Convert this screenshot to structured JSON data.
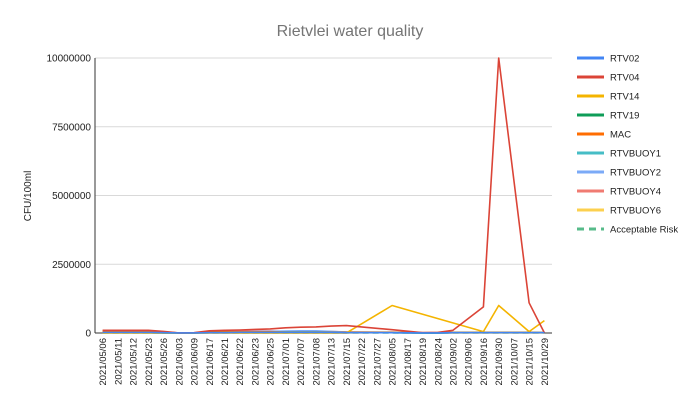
{
  "chart_data": {
    "type": "line",
    "title": "Rietvlei water quality",
    "xlabel": "",
    "ylabel": "CFU/100ml",
    "ylim": [
      0,
      10000000
    ],
    "yticks": [
      "0",
      "2500000",
      "5000000",
      "7500000",
      "10000000"
    ],
    "ytick_values": [
      0,
      2500000,
      5000000,
      7500000,
      10000000
    ],
    "grid": true,
    "legend_position": "right",
    "categories": [
      "2021/05/06",
      "2021/05/11",
      "2021/05/12",
      "2021/05/23",
      "2021/05/26",
      "2021/06/03",
      "2021/06/09",
      "2021/06/17",
      "2021/06/21",
      "2021/06/22",
      "2021/06/23",
      "2021/06/25",
      "2021/07/01",
      "2021/07/07",
      "2021/07/08",
      "2021/07/13",
      "2021/07/15",
      "2021/07/22",
      "2021/07/27",
      "2021/08/05",
      "2021/08/17",
      "2021/08/19",
      "2021/08/24",
      "2021/09/02",
      "2021/09/06",
      "2021/09/16",
      "2021/09/30",
      "2021/10/07",
      "2021/10/15",
      "2021/10/29"
    ],
    "series": [
      {
        "name": "RTV02",
        "color": "#4285f4",
        "dashed": false,
        "values": [
          20000,
          20000,
          20000,
          20000,
          10000,
          5000,
          5000,
          10000,
          10000,
          20000,
          20000,
          20000,
          20000,
          20000,
          20000,
          20000,
          10000,
          null,
          null,
          10000,
          null,
          5000,
          5000,
          10000,
          null,
          10000,
          10000,
          null,
          10000,
          10000
        ]
      },
      {
        "name": "RTV04",
        "color": "#db4437",
        "dashed": false,
        "values": [
          100000,
          100000,
          100000,
          100000,
          60000,
          5000,
          10000,
          80000,
          100000,
          110000,
          130000,
          150000,
          190000,
          210000,
          220000,
          250000,
          270000,
          null,
          null,
          120000,
          null,
          10000,
          20000,
          100000,
          null,
          950000,
          10000000,
          null,
          1100000,
          5000
        ]
      },
      {
        "name": "RTV14",
        "color": "#f4b400",
        "dashed": false,
        "values": [
          5000,
          5000,
          5000,
          5000,
          5000,
          5000,
          5000,
          5000,
          5000,
          5000,
          5000,
          5000,
          5000,
          5000,
          5000,
          5000,
          5000,
          null,
          null,
          1000000,
          null,
          null,
          null,
          null,
          null,
          50000,
          1000000,
          null,
          50000,
          450000
        ]
      },
      {
        "name": "RTV19",
        "color": "#0f9d58",
        "dashed": false,
        "values": [
          10000,
          10000,
          10000,
          10000,
          5000,
          5000,
          5000,
          10000,
          10000,
          10000,
          10000,
          10000,
          10000,
          10000,
          10000,
          10000,
          10000,
          null,
          null,
          10000,
          null,
          5000,
          5000,
          10000,
          null,
          10000,
          10000,
          null,
          10000,
          10000
        ]
      },
      {
        "name": "MAC",
        "color": "#ff6d01",
        "dashed": false,
        "values": [
          60000,
          60000,
          60000,
          60000,
          30000,
          5000,
          5000,
          40000,
          40000,
          40000,
          40000,
          40000,
          30000,
          30000,
          30000,
          30000,
          20000,
          null,
          null,
          20000,
          null,
          10000,
          10000,
          20000,
          null,
          20000,
          20000,
          null,
          20000,
          10000
        ]
      },
      {
        "name": "RTVBUOY1",
        "color": "#46bdc6",
        "dashed": false,
        "values": [
          20000,
          20000,
          20000,
          20000,
          10000,
          5000,
          5000,
          20000,
          20000,
          30000,
          30000,
          40000,
          40000,
          40000,
          40000,
          30000,
          20000,
          null,
          null,
          10000,
          null,
          5000,
          5000,
          10000,
          null,
          10000,
          10000,
          null,
          10000,
          10000
        ]
      },
      {
        "name": "RTVBUOY2",
        "color": "#7baaf7",
        "dashed": false,
        "values": [
          30000,
          30000,
          30000,
          30000,
          10000,
          5000,
          5000,
          20000,
          30000,
          40000,
          50000,
          60000,
          70000,
          80000,
          80000,
          60000,
          30000,
          null,
          null,
          10000,
          null,
          5000,
          5000,
          10000,
          null,
          10000,
          10000,
          null,
          10000,
          10000
        ]
      },
      {
        "name": "RTVBUOY4",
        "color": "#f07b72",
        "dashed": false,
        "values": [
          80000,
          80000,
          80000,
          70000,
          40000,
          5000,
          5000,
          60000,
          70000,
          70000,
          70000,
          70000,
          60000,
          60000,
          60000,
          50000,
          40000,
          null,
          null,
          30000,
          null,
          10000,
          10000,
          20000,
          null,
          20000,
          20000,
          null,
          20000,
          10000
        ]
      },
      {
        "name": "RTVBUOY6",
        "color": "#fcd04f",
        "dashed": false,
        "values": [
          5000,
          5000,
          5000,
          5000,
          5000,
          5000,
          5000,
          5000,
          5000,
          5000,
          5000,
          5000,
          5000,
          5000,
          5000,
          5000,
          5000,
          null,
          null,
          10000,
          null,
          5000,
          5000,
          5000,
          null,
          5000,
          5000,
          null,
          5000,
          5000
        ]
      },
      {
        "name": "Acceptable Risk",
        "color": "#57bb8a",
        "dashed": true,
        "values": [
          1000,
          1000,
          1000,
          1000,
          1000,
          1000,
          1000,
          1000,
          1000,
          1000,
          1000,
          1000,
          1000,
          1000,
          1000,
          1000,
          1000,
          1000,
          1000,
          1000,
          1000,
          1000,
          1000,
          1000,
          1000,
          1000,
          1000,
          1000,
          1000,
          1000
        ]
      }
    ]
  }
}
